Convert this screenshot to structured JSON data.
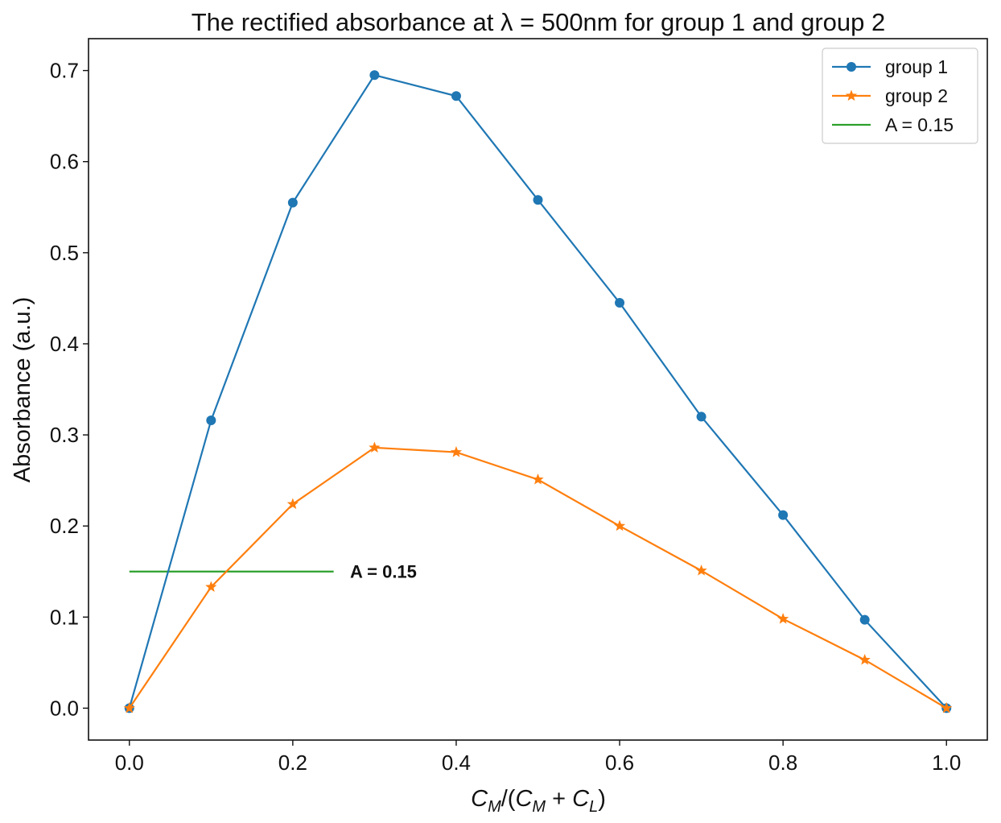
{
  "chart_data": {
    "type": "line",
    "title": "The rectified absorbance at λ = 500nm for group 1 and group 2",
    "xlabel": "C_M/(C_M + C_L)",
    "xlabel_parts": {
      "c": "C",
      "m": "M",
      "l": "L",
      "open": "/(",
      "plus": " + ",
      "close": ")"
    },
    "ylabel": "Absorbance (a.u.)",
    "xlim": [
      -0.05,
      1.05
    ],
    "ylim": [
      -0.035,
      0.735
    ],
    "x_ticks": [
      0.0,
      0.2,
      0.4,
      0.6,
      0.8,
      1.0
    ],
    "x_tick_labels": [
      "0.0",
      "0.2",
      "0.4",
      "0.6",
      "0.8",
      "1.0"
    ],
    "y_ticks": [
      0.0,
      0.1,
      0.2,
      0.3,
      0.4,
      0.5,
      0.6,
      0.7
    ],
    "y_tick_labels": [
      "0.0",
      "0.1",
      "0.2",
      "0.3",
      "0.4",
      "0.5",
      "0.6",
      "0.7"
    ],
    "grid": false,
    "legend_position": "top-right",
    "x": [
      0.0,
      0.1,
      0.2,
      0.3,
      0.4,
      0.5,
      0.6,
      0.7,
      0.8,
      0.9,
      1.0
    ],
    "series": [
      {
        "name": "group 1",
        "marker": "circle",
        "color": "#1f77b4",
        "values": [
          0.0,
          0.316,
          0.555,
          0.695,
          0.672,
          0.558,
          0.445,
          0.32,
          0.212,
          0.097,
          0.0
        ]
      },
      {
        "name": "group 2",
        "marker": "star",
        "color": "#ff7f0e",
        "values": [
          0.0,
          0.133,
          0.224,
          0.286,
          0.281,
          0.251,
          0.2,
          0.151,
          0.098,
          0.053,
          0.0
        ]
      }
    ],
    "reference_line": {
      "name": "A = 0.15",
      "color": "#2ca02c",
      "y": 0.15,
      "x_start": 0.0,
      "x_end": 0.25
    },
    "annotation": {
      "text": "A = 0.15",
      "x": 0.27,
      "y": 0.15
    }
  }
}
